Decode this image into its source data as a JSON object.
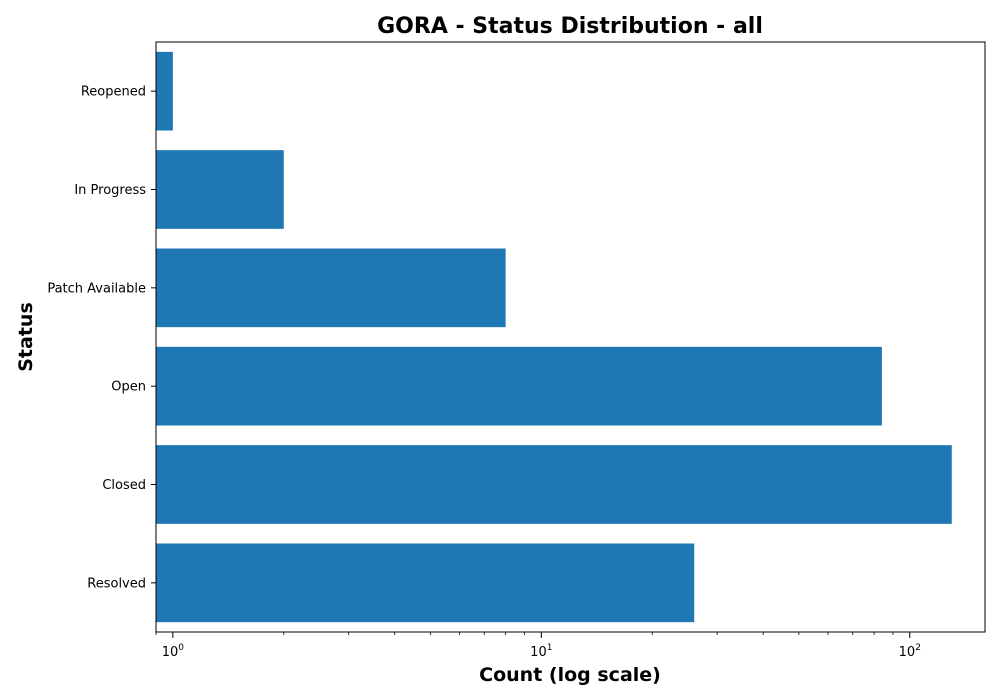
{
  "chart_data": {
    "type": "bar",
    "orientation": "horizontal",
    "title": "GORA - Status Distribution - all",
    "xlabel": "Count (log scale)",
    "ylabel": "Status",
    "xscale": "log",
    "xlim": [
      0.9,
      160
    ],
    "categories": [
      "Resolved",
      "Closed",
      "Open",
      "Patch Available",
      "In Progress",
      "Reopened"
    ],
    "values": [
      26,
      130,
      84,
      8,
      2,
      1
    ],
    "x_ticks": [
      {
        "value": 1,
        "base": "10",
        "exponent": "0"
      },
      {
        "value": 10,
        "base": "10",
        "exponent": "1"
      },
      {
        "value": 100,
        "base": "10",
        "exponent": "2"
      }
    ],
    "bar_color": "#1f77b4",
    "grid": false,
    "legend": "none"
  }
}
